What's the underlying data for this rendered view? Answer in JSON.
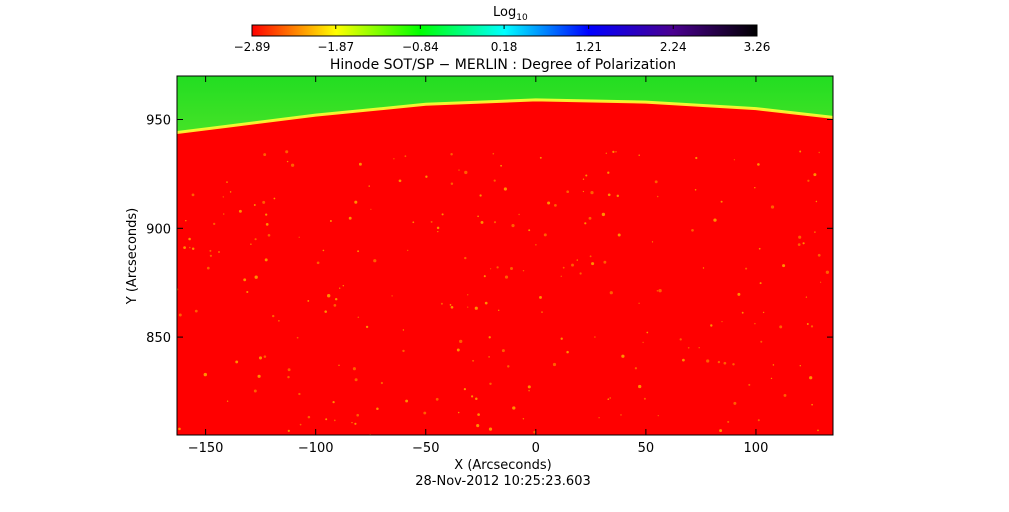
{
  "chart_data": {
    "type": "heatmap",
    "title": "Hinode SOT/SP − MERLIN : Degree of Polarization",
    "xlabel": "X (Arcseconds)",
    "ylabel": "Y (Arcseconds)",
    "timestamp": "28-Nov-2012 10:25:23.603",
    "xlim": [
      -163,
      135
    ],
    "ylim": [
      805,
      970
    ],
    "x_ticks": [
      -150,
      -100,
      -50,
      0,
      50,
      100
    ],
    "y_ticks": [
      850,
      900,
      950
    ],
    "colorbar": {
      "label_base": "Log",
      "label_sub": "10",
      "range": [
        -2.89,
        3.26
      ],
      "tick_values": [
        -2.89,
        -1.87,
        -0.84,
        0.18,
        1.21,
        2.24,
        3.26
      ],
      "tick_labels": [
        "−2.89",
        "−1.87",
        "−0.84",
        "0.18",
        "1.21",
        "2.24",
        "3.26"
      ],
      "colors": [
        "#ff0000",
        "#ffff00",
        "#00ff00",
        "#00ffff",
        "#0000ff",
        "#4a0090",
        "#000000"
      ]
    },
    "limb": {
      "x": [
        -163,
        -100,
        -50,
        0,
        50,
        100,
        135
      ],
      "y": [
        944,
        952,
        957,
        959,
        958,
        955,
        951
      ]
    },
    "disk_color": "#ff0000",
    "offdisk_color_near": "#ffff40",
    "offdisk_color_far": "#22dd22",
    "grid": false,
    "legend": "none"
  }
}
